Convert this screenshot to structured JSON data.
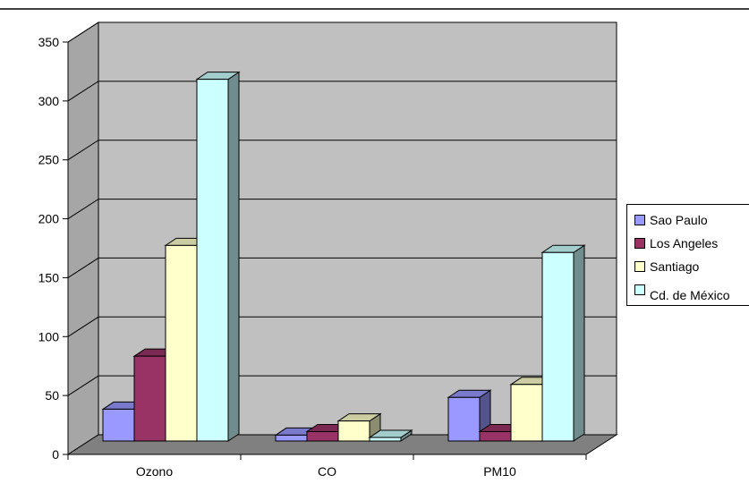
{
  "chart_data": {
    "type": "bar",
    "categories": [
      "Ozono",
      "CO",
      "PM10"
    ],
    "series": [
      {
        "name": "Sao Paulo",
        "color": "#9999ff",
        "values": [
          27,
          5,
          37
        ]
      },
      {
        "name": "Los Angeles",
        "color": "#993366",
        "values": [
          72,
          8,
          8
        ]
      },
      {
        "name": "Santiago",
        "color": "#ffffcc",
        "values": [
          166,
          17,
          48
        ]
      },
      {
        "name": "Cd. de México",
        "color": "#ccffff",
        "values": [
          307,
          3,
          160
        ]
      }
    ],
    "yticks": [
      0,
      50,
      100,
      150,
      200,
      250,
      300,
      350
    ],
    "ylim": [
      0,
      350
    ],
    "grid": true,
    "legend_position": "right",
    "wall_color": "#c0c0c0",
    "floor_color": "#808080",
    "title": "",
    "xlabel": "",
    "ylabel": ""
  }
}
